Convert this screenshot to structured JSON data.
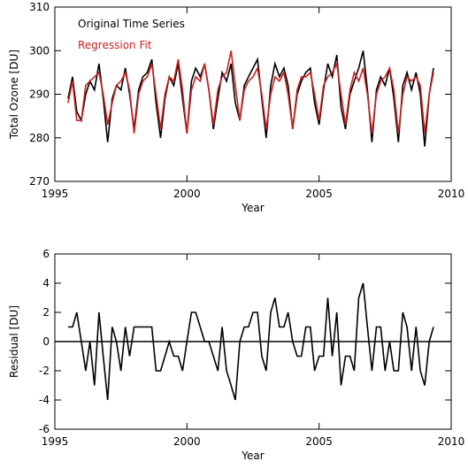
{
  "chart_data": [
    {
      "type": "line",
      "xlabel": "Year",
      "ylabel": "Total Ozone [DU]",
      "x": [
        1995.5,
        1995.67,
        1995.83,
        1996,
        1996.17,
        1996.33,
        1996.5,
        1996.67,
        1996.83,
        1997,
        1997.17,
        1997.33,
        1997.5,
        1997.67,
        1997.83,
        1998,
        1998.17,
        1998.33,
        1998.5,
        1998.67,
        1998.83,
        1999,
        1999.17,
        1999.33,
        1999.5,
        1999.67,
        1999.83,
        2000,
        2000.17,
        2000.33,
        2000.5,
        2000.67,
        2000.83,
        2001,
        2001.17,
        2001.33,
        2001.5,
        2001.67,
        2001.83,
        2002,
        2002.17,
        2002.33,
        2002.5,
        2002.67,
        2002.83,
        2003,
        2003.17,
        2003.33,
        2003.5,
        2003.67,
        2003.83,
        2004,
        2004.17,
        2004.33,
        2004.5,
        2004.67,
        2004.83,
        2005,
        2005.17,
        2005.33,
        2005.5,
        2005.67,
        2005.83,
        2006,
        2006.17,
        2006.33,
        2006.5,
        2006.67,
        2006.83,
        2007,
        2007.17,
        2007.33,
        2007.5,
        2007.67,
        2007.83,
        2008,
        2008.17,
        2008.33,
        2008.5,
        2008.67,
        2008.83,
        2009,
        2009.17,
        2009.33
      ],
      "series": [
        {
          "name": "Original Time Series",
          "color": "#000000",
          "values": [
            289,
            294,
            286,
            284,
            290,
            293,
            291,
            297,
            289,
            279,
            289,
            292,
            291,
            296,
            290,
            282,
            291,
            294,
            295,
            298,
            288,
            280,
            289,
            294,
            292,
            297,
            289,
            281,
            293,
            296,
            294,
            297,
            291,
            282,
            289,
            295,
            293,
            297,
            288,
            284,
            292,
            294,
            296,
            298,
            289,
            280,
            292,
            297,
            294,
            296,
            292,
            282,
            290,
            293,
            295,
            296,
            288,
            283,
            291,
            297,
            294,
            299,
            287,
            282,
            290,
            293,
            296,
            300,
            291,
            279,
            291,
            294,
            292,
            296,
            289,
            279,
            292,
            295,
            291,
            295,
            290,
            278,
            290,
            296
          ]
        },
        {
          "name": "Regression Fit",
          "color": "#cc1f1f",
          "values": [
            288,
            293,
            284,
            284,
            292,
            293,
            294,
            295,
            290,
            283,
            288,
            292,
            293,
            295,
            291,
            281,
            290,
            293,
            294,
            297,
            290,
            282,
            290,
            294,
            293,
            298,
            291,
            281,
            291,
            294,
            293,
            297,
            291,
            283,
            291,
            294,
            295,
            300,
            292,
            284,
            291,
            293,
            294,
            296,
            290,
            282,
            290,
            294,
            293,
            295,
            290,
            282,
            291,
            294,
            294,
            295,
            290,
            284,
            292,
            294,
            295,
            297,
            290,
            283,
            291,
            295,
            293,
            296,
            290,
            281,
            290,
            293,
            294,
            296,
            291,
            281,
            290,
            294,
            293,
            294,
            292,
            281,
            290,
            295
          ]
        }
      ],
      "xlim": [
        1995,
        2010
      ],
      "xticks": [
        1995,
        2000,
        2005,
        2010
      ],
      "ylim": [
        270,
        310
      ],
      "yticks": [
        270,
        280,
        290,
        300,
        310
      ]
    },
    {
      "type": "line",
      "xlabel": "Year",
      "ylabel": "Residual [DU]",
      "x": [
        1995.5,
        1995.67,
        1995.83,
        1996,
        1996.17,
        1996.33,
        1996.5,
        1996.67,
        1996.83,
        1997,
        1997.17,
        1997.33,
        1997.5,
        1997.67,
        1997.83,
        1998,
        1998.17,
        1998.33,
        1998.5,
        1998.67,
        1998.83,
        1999,
        1999.17,
        1999.33,
        1999.5,
        1999.67,
        1999.83,
        2000,
        2000.17,
        2000.33,
        2000.5,
        2000.67,
        2000.83,
        2001,
        2001.17,
        2001.33,
        2001.5,
        2001.67,
        2001.83,
        2002,
        2002.17,
        2002.33,
        2002.5,
        2002.67,
        2002.83,
        2003,
        2003.17,
        2003.33,
        2003.5,
        2003.67,
        2003.83,
        2004,
        2004.17,
        2004.33,
        2004.5,
        2004.67,
        2004.83,
        2005,
        2005.17,
        2005.33,
        2005.5,
        2005.67,
        2005.83,
        2006,
        2006.17,
        2006.33,
        2006.5,
        2006.67,
        2006.83,
        2007,
        2007.17,
        2007.33,
        2007.5,
        2007.67,
        2007.83,
        2008,
        2008.17,
        2008.33,
        2008.5,
        2008.67,
        2008.83,
        2009,
        2009.17,
        2009.33
      ],
      "series": [
        {
          "color": "#000000",
          "values": [
            1,
            1,
            2,
            0,
            -2,
            0,
            -3,
            2,
            -1,
            -4,
            1,
            0,
            -2,
            1,
            -1,
            1,
            1,
            1,
            1,
            1,
            -2,
            -2,
            -1,
            0,
            -1,
            -1,
            -2,
            0,
            2,
            2,
            1,
            0,
            0,
            -1,
            -2,
            1,
            -2,
            -3,
            -4,
            0,
            1,
            1,
            2,
            2,
            -1,
            -2,
            2,
            3,
            1,
            1,
            2,
            0,
            -1,
            -1,
            1,
            1,
            -2,
            -1,
            -1,
            3,
            -1,
            2,
            -3,
            -1,
            -1,
            -2,
            3,
            4,
            1,
            -2,
            1,
            1,
            -2,
            0,
            -2,
            -2,
            2,
            1,
            -2,
            1,
            -2,
            -3,
            0,
            1
          ]
        }
      ],
      "hline": 0,
      "xlim": [
        1995,
        2010
      ],
      "xticks": [
        1995,
        2000,
        2005,
        2010
      ],
      "ylim": [
        -6,
        6
      ],
      "yticks": [
        -6,
        -4,
        -2,
        0,
        2,
        4,
        6
      ]
    }
  ]
}
